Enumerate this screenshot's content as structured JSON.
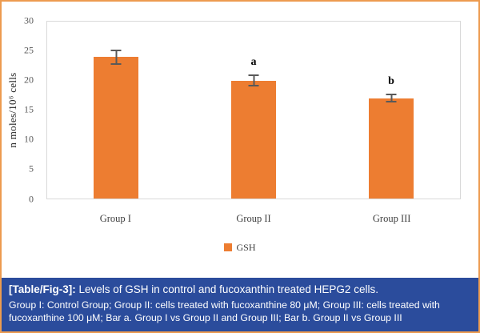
{
  "chart_data": {
    "type": "bar",
    "title": "",
    "categories": [
      "Group I",
      "Group II",
      "Group  III"
    ],
    "values": [
      24,
      20,
      17
    ],
    "errors": [
      1.3,
      1.0,
      0.8
    ],
    "bar_labels": [
      "",
      "a",
      "b"
    ],
    "series_name": "GSH",
    "legend": [
      "GSH"
    ],
    "legend_position": "bottom",
    "xlabel": "",
    "ylabel": "n moles/10⁶ cells",
    "ylim": [
      0,
      30
    ],
    "yticks": [
      0,
      5,
      10,
      15,
      20,
      25,
      30
    ],
    "grid": false,
    "bar_color": "#ED7D31"
  },
  "caption": {
    "tag": "[Table/Fig-3]:",
    "title": " Levels of GSH in control and fucoxanthin treated HEPG2 cells.",
    "body": "Group I: Control Group; Group II: cells treated with fucoxanthine 80 μM; Group III: cells treated with fucoxanthine 100 μM; Bar a. Group I vs Group II and Group III; Bar b. Group II vs Group III"
  },
  "colors": {
    "bar": "#ED7D31",
    "caption": "#2B4C9C",
    "frame": "#ED9B4F"
  }
}
